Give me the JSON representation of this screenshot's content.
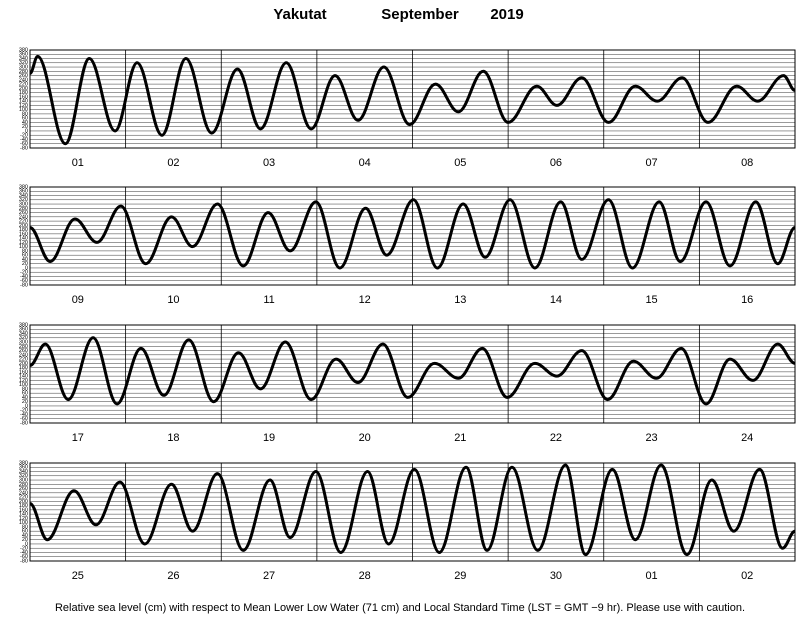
{
  "title": {
    "location": "Yakutat",
    "month": "September",
    "year": "2019"
  },
  "note": "Relative sea level (cm) with respect to Mean Lower Low Water (71 cm) and Local Standard Time (LST = GMT −9 hr). Please use with caution.",
  "chart_data": [
    {
      "type": "line",
      "categories": [
        "01",
        "02",
        "03",
        "04",
        "05",
        "06",
        "07",
        "08"
      ],
      "x": [
        0,
        0.08,
        0.37,
        0.62,
        0.89,
        1.12,
        1.38,
        1.63,
        1.9,
        2.17,
        2.41,
        2.68,
        2.94,
        3.19,
        3.43,
        3.7,
        3.97,
        4.24,
        4.48,
        4.74,
        5.0,
        5.3,
        5.51,
        5.77,
        6.05,
        6.33,
        6.56,
        6.82,
        7.09,
        7.39,
        7.61,
        7.88,
        8
      ],
      "values": [
        270,
        350,
        -60,
        340,
        0,
        320,
        -20,
        340,
        -10,
        290,
        10,
        320,
        10,
        260,
        50,
        300,
        30,
        220,
        90,
        280,
        40,
        210,
        120,
        250,
        40,
        210,
        140,
        250,
        40,
        210,
        140,
        260,
        190
      ],
      "xlim": [
        0,
        8
      ],
      "ylim": [
        -80,
        380
      ],
      "yticks": [
        -80,
        -60,
        -40,
        -20,
        0,
        20,
        40,
        60,
        80,
        100,
        120,
        140,
        160,
        180,
        200,
        220,
        240,
        260,
        280,
        300,
        320,
        340,
        360,
        380
      ]
    },
    {
      "type": "line",
      "categories": [
        "09",
        "10",
        "11",
        "12",
        "13",
        "14",
        "15",
        "16"
      ],
      "x": [
        0,
        0.21,
        0.47,
        0.7,
        0.95,
        1.21,
        1.48,
        1.7,
        1.96,
        2.23,
        2.49,
        2.72,
        2.99,
        3.24,
        3.51,
        3.73,
        4.01,
        4.26,
        4.53,
        4.76,
        5.02,
        5.28,
        5.55,
        5.77,
        6.05,
        6.3,
        6.58,
        6.8,
        7.07,
        7.32,
        7.59,
        7.82,
        8
      ],
      "values": [
        190,
        30,
        230,
        120,
        290,
        20,
        240,
        100,
        300,
        10,
        260,
        80,
        310,
        0,
        280,
        60,
        320,
        0,
        300,
        50,
        320,
        0,
        310,
        40,
        320,
        0,
        310,
        30,
        310,
        10,
        310,
        20,
        190
      ],
      "xlim": [
        0,
        8
      ],
      "ylim": [
        -80,
        380
      ],
      "yticks": [
        -80,
        -60,
        -40,
        -20,
        0,
        20,
        40,
        60,
        80,
        100,
        120,
        140,
        160,
        180,
        200,
        220,
        240,
        260,
        280,
        300,
        320,
        340,
        360,
        380
      ]
    },
    {
      "type": "line",
      "categories": [
        "17",
        "18",
        "19",
        "20",
        "21",
        "22",
        "23",
        "24"
      ],
      "x": [
        0,
        0.16,
        0.4,
        0.66,
        0.91,
        1.16,
        1.4,
        1.66,
        1.92,
        2.18,
        2.41,
        2.67,
        2.94,
        3.2,
        3.43,
        3.69,
        3.95,
        4.23,
        4.48,
        4.73,
        4.99,
        5.28,
        5.51,
        5.77,
        6.04,
        6.31,
        6.55,
        6.81,
        7.07,
        7.32,
        7.56,
        7.82,
        8
      ],
      "values": [
        190,
        290,
        30,
        320,
        10,
        270,
        50,
        310,
        20,
        250,
        80,
        300,
        30,
        220,
        110,
        290,
        40,
        200,
        130,
        270,
        40,
        200,
        140,
        260,
        30,
        210,
        130,
        270,
        10,
        220,
        120,
        290,
        200
      ],
      "xlim": [
        0,
        8
      ],
      "ylim": [
        -80,
        380
      ],
      "yticks": [
        -80,
        -60,
        -40,
        -20,
        0,
        20,
        40,
        60,
        80,
        100,
        120,
        140,
        160,
        180,
        200,
        220,
        240,
        260,
        280,
        300,
        320,
        340,
        360,
        380
      ]
    },
    {
      "type": "line",
      "categories": [
        "25",
        "26",
        "27",
        "28",
        "29",
        "30",
        "01",
        "02"
      ],
      "x": [
        0,
        0.18,
        0.46,
        0.69,
        0.94,
        1.2,
        1.48,
        1.7,
        1.96,
        2.23,
        2.51,
        2.72,
        2.99,
        3.25,
        3.53,
        3.75,
        4.02,
        4.28,
        4.56,
        4.78,
        5.04,
        5.31,
        5.6,
        5.81,
        6.09,
        6.33,
        6.6,
        6.87,
        7.13,
        7.36,
        7.63,
        7.87,
        8
      ],
      "values": [
        190,
        20,
        250,
        90,
        290,
        0,
        280,
        60,
        330,
        -30,
        300,
        30,
        340,
        -40,
        340,
        0,
        350,
        -40,
        360,
        -30,
        360,
        -30,
        370,
        -50,
        350,
        20,
        370,
        -50,
        300,
        60,
        350,
        -20,
        60
      ],
      "xlim": [
        0,
        8
      ],
      "ylim": [
        -80,
        380
      ],
      "yticks": [
        -80,
        -60,
        -40,
        -20,
        0,
        20,
        40,
        60,
        80,
        100,
        120,
        140,
        160,
        180,
        200,
        220,
        240,
        260,
        280,
        300,
        320,
        340,
        360,
        380
      ]
    }
  ]
}
